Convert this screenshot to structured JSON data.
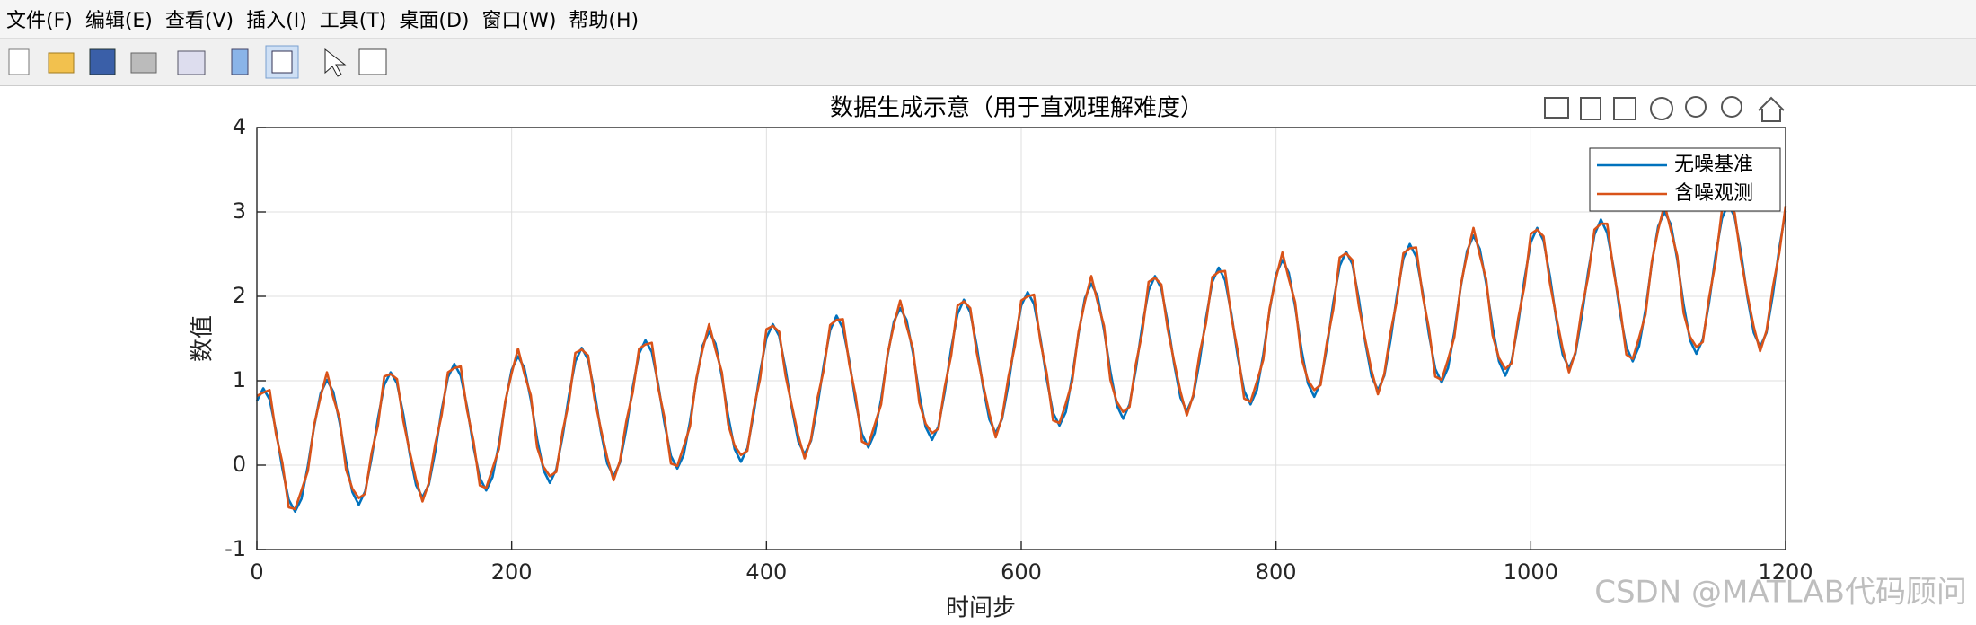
{
  "menu": [
    "文件(F)",
    "编辑(E)",
    "查看(V)",
    "插入(I)",
    "工具(T)",
    "桌面(D)",
    "窗口(W)",
    "帮助(H)"
  ],
  "watermark": "CSDN @MATLAB代码顾问",
  "chart_data": {
    "type": "line",
    "title": "数据生成示意（用于直观理解难度）",
    "xlabel": "时间步",
    "ylabel": "数值",
    "x": [
      0,
      5,
      10,
      15,
      20,
      25,
      30,
      35,
      40,
      45,
      50,
      55,
      60,
      65,
      70,
      75,
      80,
      85,
      90,
      95,
      100,
      105,
      110,
      115,
      120,
      125,
      130,
      135,
      140,
      145,
      150,
      155,
      160,
      165,
      170,
      175,
      180,
      185,
      190,
      195,
      200,
      205,
      210,
      215,
      220,
      225,
      230,
      235,
      240,
      245,
      250,
      255,
      260,
      265,
      270,
      275,
      280,
      285,
      290,
      295,
      300,
      305,
      310,
      315,
      320,
      325,
      330,
      335,
      340,
      345,
      350,
      355,
      360,
      365,
      370,
      375,
      380,
      385,
      390,
      395,
      400,
      405,
      410,
      415,
      420,
      425,
      430,
      435,
      440,
      445,
      450,
      455,
      460,
      465,
      470,
      475,
      480,
      485,
      490,
      495,
      500,
      505,
      510,
      515,
      520,
      525,
      530,
      535,
      540,
      545,
      550,
      555,
      560,
      565,
      570,
      575,
      580,
      585,
      590,
      595,
      600,
      605,
      610,
      615,
      620,
      625,
      630,
      635,
      640,
      645,
      650,
      655,
      660,
      665,
      670,
      675,
      680,
      685,
      690,
      695,
      700,
      705,
      710,
      715,
      720,
      725,
      730,
      735,
      740,
      745,
      750,
      755,
      760,
      765,
      770,
      775,
      780,
      785,
      790,
      795,
      800,
      805,
      810,
      815,
      820,
      825,
      830,
      835,
      840,
      845,
      850,
      855,
      860,
      865,
      870,
      875,
      880,
      885,
      890,
      895,
      900,
      905,
      910,
      915,
      920,
      925,
      930,
      935,
      940,
      945,
      950,
      955,
      960,
      965,
      970,
      975,
      980,
      985,
      990,
      995,
      1000,
      1005,
      1010,
      1015,
      1020,
      1025,
      1030,
      1035,
      1040,
      1045,
      1050,
      1055,
      1060,
      1065,
      1070,
      1075,
      1080,
      1085,
      1090,
      1095,
      1100,
      1105,
      1110,
      1115,
      1120,
      1125,
      1130,
      1135,
      1140,
      1145,
      1150,
      1155,
      1160,
      1165,
      1170,
      1175,
      1180,
      1185,
      1190,
      1195,
      1200
    ],
    "series": [
      {
        "name": "无噪基准",
        "color": "#0072BD",
        "values": [
          0.76,
          0.91,
          0.78,
          0.41,
          -0.04,
          -0.41,
          -0.55,
          -0.4,
          -0.01,
          0.46,
          0.85,
          1.01,
          0.87,
          0.5,
          0.05,
          -0.32,
          -0.47,
          -0.31,
          0.08,
          0.55,
          0.95,
          1.1,
          0.97,
          0.6,
          0.13,
          -0.24,
          -0.38,
          -0.23,
          0.16,
          0.65,
          1.04,
          1.2,
          1.06,
          0.69,
          0.22,
          -0.15,
          -0.3,
          -0.14,
          0.25,
          0.74,
          1.13,
          1.29,
          1.15,
          0.78,
          0.31,
          -0.06,
          -0.21,
          -0.05,
          0.34,
          0.83,
          1.23,
          1.39,
          1.25,
          0.87,
          0.4,
          0.02,
          -0.13,
          0.03,
          0.43,
          0.92,
          1.32,
          1.48,
          1.34,
          0.96,
          0.49,
          0.11,
          -0.04,
          0.12,
          0.52,
          1.01,
          1.42,
          1.58,
          1.44,
          1.05,
          0.58,
          0.19,
          0.04,
          0.2,
          0.61,
          1.1,
          1.51,
          1.67,
          1.53,
          1.14,
          0.67,
          0.28,
          0.13,
          0.29,
          0.7,
          1.19,
          1.6,
          1.77,
          1.62,
          1.24,
          0.75,
          0.37,
          0.21,
          0.38,
          0.78,
          1.29,
          1.7,
          1.86,
          1.72,
          1.33,
          0.84,
          0.45,
          0.3,
          0.46,
          0.87,
          1.38,
          1.79,
          1.96,
          1.81,
          1.42,
          0.93,
          0.54,
          0.38,
          0.55,
          0.96,
          1.47,
          1.89,
          2.05,
          1.91,
          1.51,
          1.02,
          0.62,
          0.47,
          0.63,
          1.05,
          1.56,
          1.98,
          2.15,
          2.0,
          1.6,
          1.11,
          0.71,
          0.55,
          0.72,
          1.14,
          1.65,
          2.07,
          2.24,
          2.09,
          1.69,
          1.2,
          0.8,
          0.64,
          0.81,
          1.23,
          1.74,
          2.17,
          2.34,
          2.19,
          1.79,
          1.28,
          0.88,
          0.72,
          0.89,
          1.31,
          1.84,
          2.26,
          2.43,
          2.28,
          1.88,
          1.37,
          0.97,
          0.81,
          0.98,
          1.4,
          1.93,
          2.36,
          2.53,
          2.38,
          1.97,
          1.46,
          1.05,
          0.89,
          1.06,
          1.49,
          2.02,
          2.45,
          2.62,
          2.47,
          2.06,
          1.55,
          1.14,
          0.98,
          1.15,
          1.58,
          2.11,
          2.54,
          2.72,
          2.56,
          2.15,
          1.64,
          1.23,
          1.06,
          1.24,
          1.67,
          2.2,
          2.64,
          2.81,
          2.66,
          2.24,
          1.73,
          1.31,
          1.15,
          1.32,
          1.76,
          2.29,
          2.73,
          2.91,
          2.75,
          2.34,
          1.81,
          1.4,
          1.23,
          1.41,
          1.84,
          2.39,
          2.83,
          3.0,
          2.85,
          2.43,
          1.9,
          1.48,
          1.32,
          1.49,
          1.93,
          2.48,
          2.92,
          3.1,
          2.94,
          2.52,
          1.99,
          1.57,
          1.4,
          1.57,
          2.02,
          2.57,
          3.01
        ]
      },
      {
        "name": "含噪观测",
        "color": "#D95319",
        "values": [
          0.82,
          0.86,
          0.89,
          0.37,
          0.03,
          -0.5,
          -0.52,
          -0.3,
          -0.07,
          0.48,
          0.81,
          1.1,
          0.8,
          0.55,
          -0.05,
          -0.28,
          -0.39,
          -0.34,
          0.14,
          0.47,
          1.05,
          1.08,
          1.02,
          0.52,
          0.16,
          -0.17,
          -0.43,
          -0.21,
          0.25,
          0.59,
          1.1,
          1.15,
          1.17,
          0.65,
          0.29,
          -0.24,
          -0.27,
          -0.04,
          0.19,
          0.76,
          1.09,
          1.38,
          1.08,
          0.83,
          0.21,
          -0.02,
          -0.13,
          -0.08,
          0.4,
          0.75,
          1.33,
          1.37,
          1.3,
          0.79,
          0.43,
          0.09,
          -0.18,
          0.05,
          0.52,
          0.86,
          1.38,
          1.43,
          1.45,
          0.92,
          0.56,
          0.02,
          -0.01,
          0.22,
          0.46,
          1.03,
          1.38,
          1.67,
          1.37,
          1.1,
          0.48,
          0.23,
          0.12,
          0.17,
          0.67,
          1.02,
          1.61,
          1.65,
          1.58,
          1.06,
          0.7,
          0.35,
          0.08,
          0.31,
          0.79,
          1.13,
          1.66,
          1.72,
          1.73,
          1.2,
          0.82,
          0.28,
          0.24,
          0.48,
          0.72,
          1.31,
          1.66,
          1.95,
          1.65,
          1.38,
          0.74,
          0.49,
          0.38,
          0.43,
          0.93,
          1.3,
          1.89,
          1.94,
          1.86,
          1.34,
          0.96,
          0.61,
          0.33,
          0.57,
          1.05,
          1.41,
          1.95,
          2.0,
          2.02,
          1.47,
          1.09,
          0.53,
          0.5,
          0.73,
          0.99,
          1.58,
          1.94,
          2.24,
          1.93,
          1.65,
          1.01,
          0.75,
          0.63,
          0.69,
          1.2,
          1.57,
          2.17,
          2.22,
          2.14,
          1.61,
          1.23,
          0.87,
          0.59,
          0.83,
          1.32,
          1.68,
          2.23,
          2.29,
          2.3,
          1.75,
          1.35,
          0.79,
          0.75,
          0.99,
          1.25,
          1.86,
          2.22,
          2.52,
          2.21,
          1.93,
          1.27,
          1.01,
          0.89,
          0.95,
          1.46,
          1.85,
          2.46,
          2.51,
          2.43,
          1.89,
          1.49,
          1.12,
          0.84,
          1.08,
          1.58,
          1.96,
          2.51,
          2.57,
          2.58,
          2.02,
          1.62,
          1.05,
          1.01,
          1.25,
          1.52,
          2.13,
          2.5,
          2.81,
          2.49,
          2.2,
          1.54,
          1.27,
          1.14,
          1.21,
          1.73,
          2.12,
          2.74,
          2.79,
          2.71,
          2.16,
          1.76,
          1.38,
          1.1,
          1.34,
          1.85,
          2.23,
          2.79,
          2.86,
          2.86,
          2.3,
          1.88,
          1.31,
          1.26,
          1.51,
          1.78,
          2.41,
          2.79,
          3.09,
          2.78,
          2.48,
          1.8,
          1.52,
          1.4,
          1.46,
          1.99,
          2.4,
          3.02,
          3.08,
          2.99,
          2.44,
          2.02,
          1.64,
          1.35,
          1.59,
          2.11,
          2.51,
          3.07
        ]
      }
    ],
    "xlim": [
      0,
      1200
    ],
    "ylim": [
      -1,
      4
    ],
    "xticks": [
      0,
      200,
      400,
      600,
      800,
      1000,
      1200
    ],
    "yticks": [
      -1,
      0,
      1,
      2,
      3,
      4
    ],
    "grid": true,
    "legend": "upper-right"
  }
}
